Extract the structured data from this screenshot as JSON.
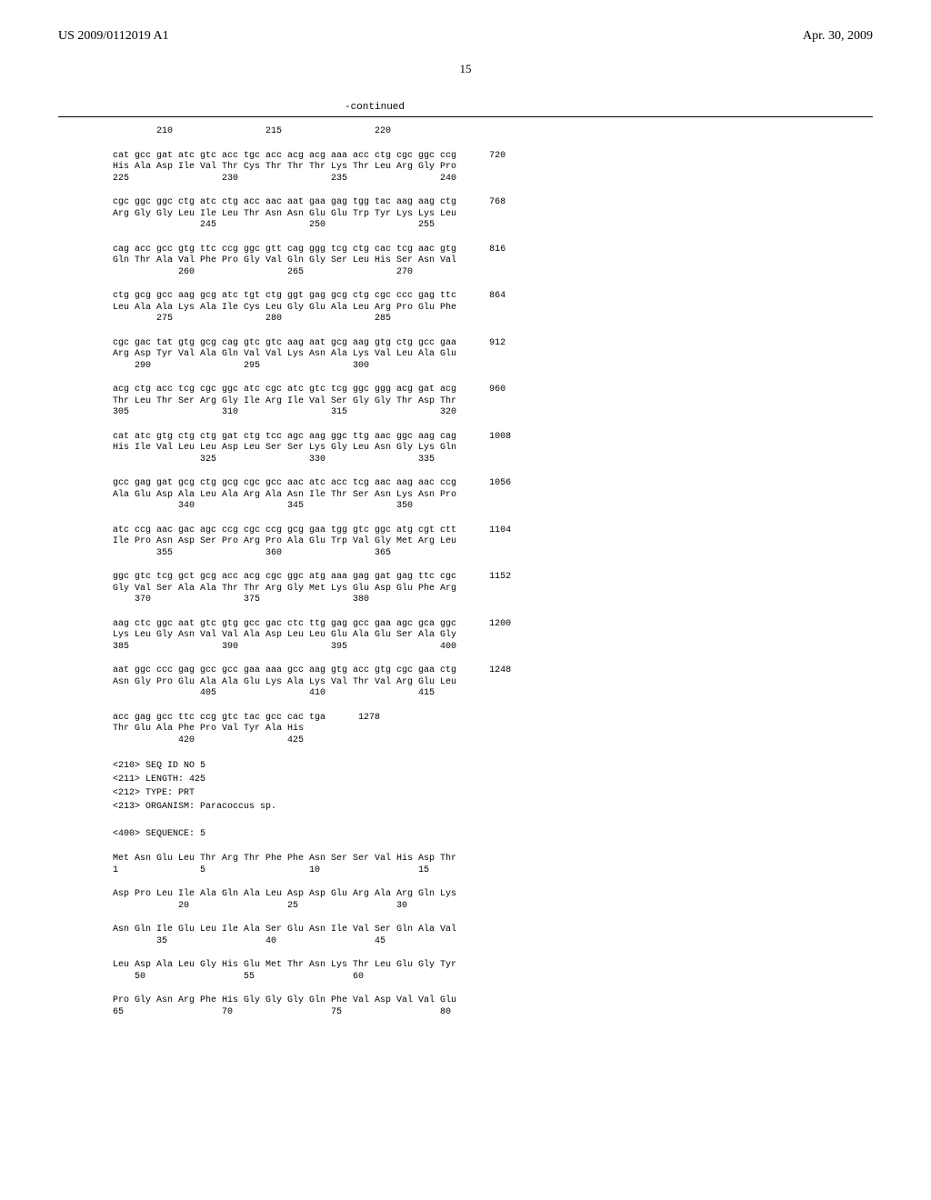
{
  "header": {
    "left": "US 2009/0112019 A1",
    "right": "Apr. 30, 2009"
  },
  "page_number": "15",
  "continued_label": "-continued",
  "seq4": {
    "pos_row0": "        210                 215                 220",
    "blocks": [
      {
        "codon": "cat gcc gat atc gtc acc tgc acc acg acg aaa acc ctg cgc ggc ccg",
        "aa": "His Ala Asp Ile Val Thr Cys Thr Thr Thr Lys Thr Leu Arg Gly Pro",
        "pos": "225                 230                 235                 240",
        "num": "720"
      },
      {
        "codon": "cgc ggc ggc ctg atc ctg acc aac aat gaa gag tgg tac aag aag ctg",
        "aa": "Arg Gly Gly Leu Ile Leu Thr Asn Asn Glu Glu Trp Tyr Lys Lys Leu",
        "pos": "                245                 250                 255",
        "num": "768"
      },
      {
        "codon": "cag acc gcc gtg ttc ccg ggc gtt cag ggg tcg ctg cac tcg aac gtg",
        "aa": "Gln Thr Ala Val Phe Pro Gly Val Gln Gly Ser Leu His Ser Asn Val",
        "pos": "            260                 265                 270",
        "num": "816"
      },
      {
        "codon": "ctg gcg gcc aag gcg atc tgt ctg ggt gag gcg ctg cgc ccc gag ttc",
        "aa": "Leu Ala Ala Lys Ala Ile Cys Leu Gly Glu Ala Leu Arg Pro Glu Phe",
        "pos": "        275                 280                 285",
        "num": "864"
      },
      {
        "codon": "cgc gac tat gtg gcg cag gtc gtc aag aat gcg aag gtg ctg gcc gaa",
        "aa": "Arg Asp Tyr Val Ala Gln Val Val Lys Asn Ala Lys Val Leu Ala Glu",
        "pos": "    290                 295                 300",
        "num": "912"
      },
      {
        "codon": "acg ctg acc tcg cgc ggc atc cgc atc gtc tcg ggc ggg acg gat acg",
        "aa": "Thr Leu Thr Ser Arg Gly Ile Arg Ile Val Ser Gly Gly Thr Asp Thr",
        "pos": "305                 310                 315                 320",
        "num": "960"
      },
      {
        "codon": "cat atc gtg ctg ctg gat ctg tcc agc aag ggc ttg aac ggc aag cag",
        "aa": "His Ile Val Leu Leu Asp Leu Ser Ser Lys Gly Leu Asn Gly Lys Gln",
        "pos": "                325                 330                 335",
        "num": "1008"
      },
      {
        "codon": "gcc gag gat gcg ctg gcg cgc gcc aac atc acc tcg aac aag aac ccg",
        "aa": "Ala Glu Asp Ala Leu Ala Arg Ala Asn Ile Thr Ser Asn Lys Asn Pro",
        "pos": "            340                 345                 350",
        "num": "1056"
      },
      {
        "codon": "atc ccg aac gac agc ccg cgc ccg gcg gaa tgg gtc ggc atg cgt ctt",
        "aa": "Ile Pro Asn Asp Ser Pro Arg Pro Ala Glu Trp Val Gly Met Arg Leu",
        "pos": "        355                 360                 365",
        "num": "1104"
      },
      {
        "codon": "ggc gtc tcg gct gcg acc acg cgc ggc atg aaa gag gat gag ttc cgc",
        "aa": "Gly Val Ser Ala Ala Thr Thr Arg Gly Met Lys Glu Asp Glu Phe Arg",
        "pos": "    370                 375                 380",
        "num": "1152"
      },
      {
        "codon": "aag ctc ggc aat gtc gtg gcc gac ctc ttg gag gcc gaa agc gca ggc",
        "aa": "Lys Leu Gly Asn Val Val Ala Asp Leu Leu Glu Ala Glu Ser Ala Gly",
        "pos": "385                 390                 395                 400",
        "num": "1200"
      },
      {
        "codon": "aat ggc ccc gag gcc gcc gaa aaa gcc aag gtg acc gtg cgc gaa ctg",
        "aa": "Asn Gly Pro Glu Ala Ala Glu Lys Ala Lys Val Thr Val Arg Glu Leu",
        "pos": "                405                 410                 415",
        "num": "1248"
      },
      {
        "codon": "acc gag gcc ttc ccg gtc tac gcc cac tga",
        "aa": "Thr Glu Ala Phe Pro Val Tyr Ala His",
        "pos": "            420                 425",
        "num": "1278"
      }
    ]
  },
  "seq5_meta": "<210> SEQ ID NO 5\n<211> LENGTH: 425\n<212> TYPE: PRT\n<213> ORGANISM: Paracoccus sp.\n\n<400> SEQUENCE: 5",
  "seq5": {
    "blocks": [
      {
        "aa": "Met Asn Glu Leu Thr Arg Thr Phe Phe Asn Ser Ser Val His Asp Thr",
        "pos": "1               5                   10                  15"
      },
      {
        "aa": "Asp Pro Leu Ile Ala Gln Ala Leu Asp Asp Glu Arg Ala Arg Gln Lys",
        "pos": "            20                  25                  30"
      },
      {
        "aa": "Asn Gln Ile Glu Leu Ile Ala Ser Glu Asn Ile Val Ser Gln Ala Val",
        "pos": "        35                  40                  45"
      },
      {
        "aa": "Leu Asp Ala Leu Gly His Glu Met Thr Asn Lys Thr Leu Glu Gly Tyr",
        "pos": "    50                  55                  60"
      },
      {
        "aa": "Pro Gly Asn Arg Phe His Gly Gly Gly Gln Phe Val Asp Val Val Glu",
        "pos": "65                  70                  75                  80"
      }
    ]
  }
}
